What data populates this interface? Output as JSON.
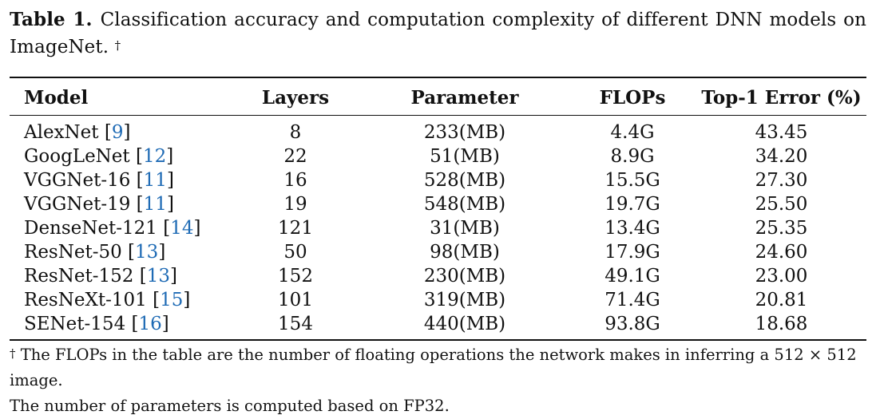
{
  "caption": {
    "label": "Table 1.",
    "text": "Classification accuracy and computation complexity of different DNN models on ImageNet.",
    "footnote_mark": "†"
  },
  "table": {
    "headers": [
      "Model",
      "Layers",
      "Parameter",
      "FLOPs",
      "Top-1 Error (%)"
    ],
    "rows": [
      {
        "model": "AlexNet",
        "ref": "9",
        "layers": "8",
        "parameter": "233(MB)",
        "flops": "4.4G",
        "top1": "43.45"
      },
      {
        "model": "GoogLeNet",
        "ref": "12",
        "layers": "22",
        "parameter": "51(MB)",
        "flops": "8.9G",
        "top1": "34.20"
      },
      {
        "model": "VGGNet-16",
        "ref": "11",
        "layers": "16",
        "parameter": "528(MB)",
        "flops": "15.5G",
        "top1": "27.30"
      },
      {
        "model": "VGGNet-19",
        "ref": "11",
        "layers": "19",
        "parameter": "548(MB)",
        "flops": "19.7G",
        "top1": "25.50"
      },
      {
        "model": "DenseNet-121",
        "ref": "14",
        "layers": "121",
        "parameter": "31(MB)",
        "flops": "13.4G",
        "top1": "25.35"
      },
      {
        "model": "ResNet-50",
        "ref": "13",
        "layers": "50",
        "parameter": "98(MB)",
        "flops": "17.9G",
        "top1": "24.60"
      },
      {
        "model": "ResNet-152",
        "ref": "13",
        "layers": "152",
        "parameter": "230(MB)",
        "flops": "49.1G",
        "top1": "23.00"
      },
      {
        "model": "ResNeXt-101",
        "ref": "15",
        "layers": "101",
        "parameter": "319(MB)",
        "flops": "71.4G",
        "top1": "20.81"
      },
      {
        "model": "SENet-154",
        "ref": "16",
        "layers": "154",
        "parameter": "440(MB)",
        "flops": "93.8G",
        "top1": "18.68"
      }
    ]
  },
  "footnote": {
    "mark": "†",
    "line1": "The FLOPs in the table are the number of floating operations the network makes in inferring a 512 × 512 image.",
    "line2": "The number of parameters is computed based on FP32."
  },
  "colors": {
    "text": "#111111",
    "reference_link": "#1f6bb5",
    "background": "#ffffff"
  }
}
